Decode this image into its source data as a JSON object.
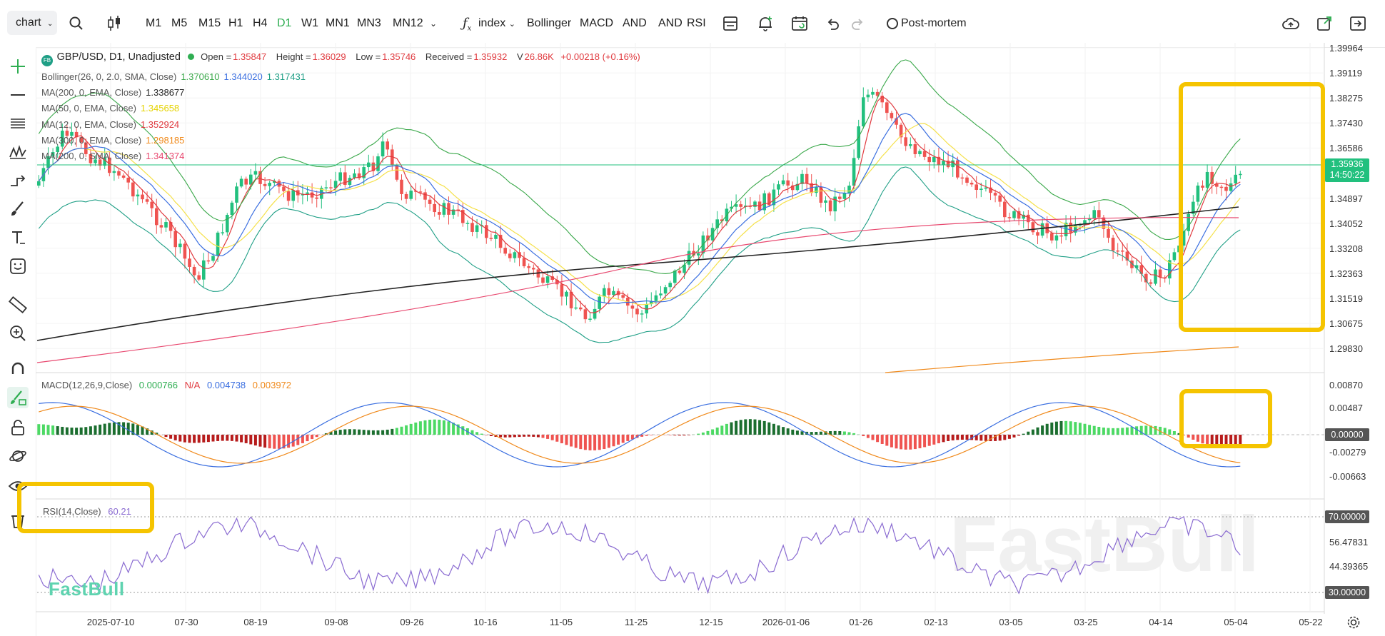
{
  "toolbar": {
    "chart_select": "chart",
    "timeframes": [
      "M1",
      "M5",
      "M15",
      "H1",
      "H4",
      "D1",
      "W1",
      "MN1",
      "MN3",
      "MN12"
    ],
    "active_timeframe": "D1",
    "index_label": "index",
    "indicators": [
      "Bollinger",
      "MACD",
      "AND",
      "AND",
      "RSI"
    ],
    "post_mortem": "Post-mortem"
  },
  "symbol": {
    "badge": "FB",
    "name": "GBP/USD, D1, Unadjusted",
    "open_label": "Open =",
    "open": "1.35847",
    "height_label": "Height =",
    "height": "1.36029",
    "low_label": "Low =",
    "low": "1.35746",
    "received_label": "Received =",
    "received": "1.35932",
    "volume_label": "V",
    "volume": "26.86K",
    "change": "+0.00218 (+0.16%)"
  },
  "indicators": [
    {
      "label": "Bollinger(26, 0, 2.0, SMA, Close)",
      "values": [
        "1.370610",
        "1.344020",
        "1.317431"
      ],
      "colors": [
        "#3aa84a",
        "#3b6fe0",
        "#1f9f86"
      ]
    },
    {
      "label": "MA(200, 0, EMA, Close)",
      "values": [
        "1.338677"
      ],
      "colors": [
        "#222222"
      ]
    },
    {
      "label": "MA(50, 0, EMA, Close)",
      "values": [
        "1.345658"
      ],
      "colors": [
        "#e5d300"
      ]
    },
    {
      "label": "MA(12, 0, EMA, Close)",
      "values": [
        "1.352924"
      ],
      "colors": [
        "#e0393e"
      ]
    },
    {
      "label": "MA(300, 0, EMA, Close)",
      "values": [
        "1.298185"
      ],
      "colors": [
        "#f08a1c"
      ]
    },
    {
      "label": "MA(200, 0, SMA, Close)",
      "values": [
        "1.341374"
      ],
      "colors": [
        "#e8486f"
      ]
    }
  ],
  "price_axis": [
    "1.39964",
    "1.39119",
    "1.38275",
    "1.37430",
    "1.36586",
    "1.34897",
    "1.34052",
    "1.33208",
    "1.32363",
    "1.31519",
    "1.30675",
    "1.29830"
  ],
  "current_price": {
    "value": "1.35936",
    "countdown": "14:50:22"
  },
  "macd": {
    "label": "MACD(12,26,9,Close)",
    "values": [
      "0.000766",
      "N/A",
      "0.004738",
      "0.003972"
    ],
    "colors": [
      "#2fae52",
      "#e0393e",
      "#3b6fe0",
      "#f08a1c"
    ],
    "axis": [
      "0.00870",
      "0.00487",
      "0.00000",
      "-0.00279",
      "-0.00663"
    ]
  },
  "rsi": {
    "label": "RSI(14,Close)",
    "value": "60.21",
    "axis_levels": [
      "70.00000",
      "30.00000"
    ],
    "axis_plain": [
      "56.47831",
      "44.39365"
    ]
  },
  "time_axis": [
    "2025-07-10",
    "07-30",
    "08-19",
    "09-08",
    "09-26",
    "10-16",
    "11-05",
    "11-25",
    "12-15",
    "2026-01-06",
    "01-26",
    "02-13",
    "03-05",
    "03-25",
    "04-14",
    "05-04",
    "05-22"
  ],
  "watermark": "FastBull",
  "logo": "FastBull"
}
